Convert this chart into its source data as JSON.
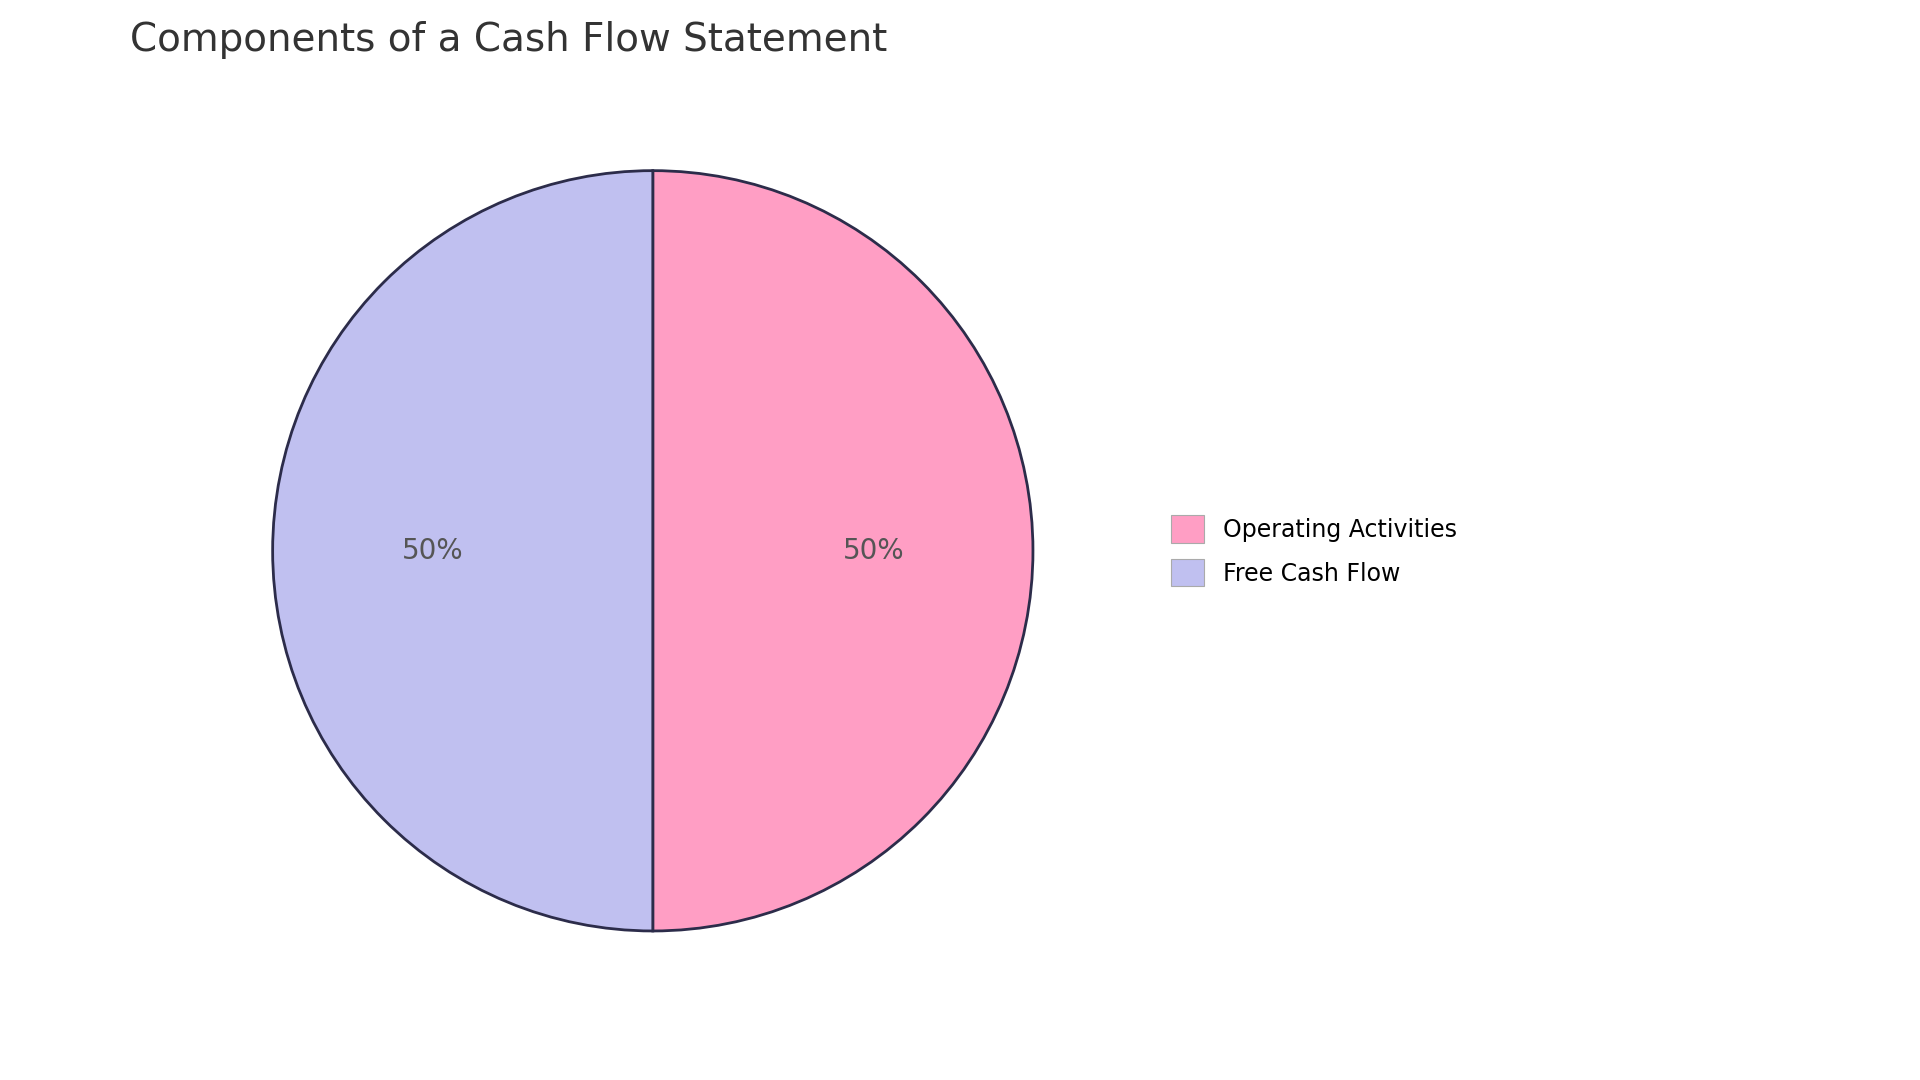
{
  "title": "Components of a Cash Flow Statement",
  "labels": [
    "Operating Activities",
    "Free Cash Flow"
  ],
  "values": [
    50,
    50
  ],
  "colors": [
    "#FF9EC4",
    "#C0C0F0"
  ],
  "edge_color": "#2C2C4A",
  "edge_width": 2.0,
  "pct_labels": [
    "50%",
    "50%"
  ],
  "pct_fontsize": 20,
  "pct_color": "#555555",
  "title_fontsize": 28,
  "title_color": "#333333",
  "legend_fontsize": 17,
  "background_color": "#FFFFFF",
  "startangle": 90
}
